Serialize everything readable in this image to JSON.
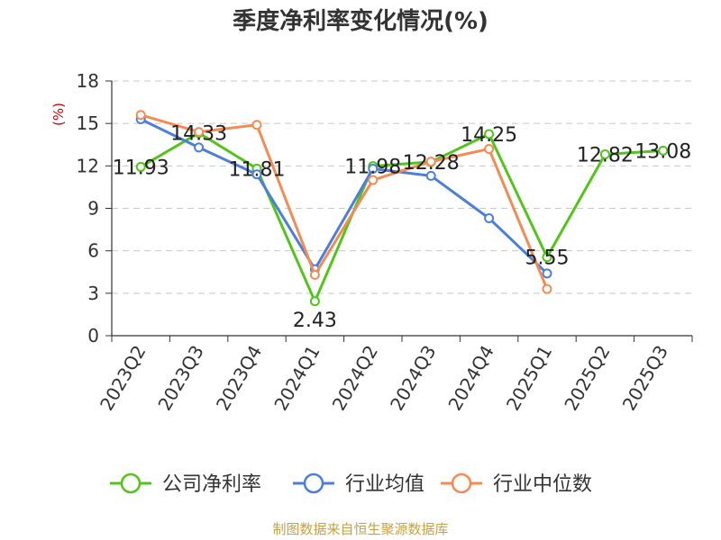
{
  "chart_data": {
    "type": "line",
    "title": "季度净利率变化情况(%)",
    "ylabel": "(%)",
    "ylim": [
      0,
      18
    ],
    "yticks": [
      0,
      3,
      6,
      9,
      12,
      15,
      18
    ],
    "grid": true,
    "legend_position": "bottom",
    "categories": [
      "2023Q2",
      "2023Q3",
      "2023Q4",
      "2024Q1",
      "2024Q2",
      "2024Q3",
      "2024Q4",
      "2025Q1",
      "2025Q2",
      "2025Q3"
    ],
    "series": [
      {
        "name": "公司净利率",
        "color": "#52c41a",
        "values": [
          11.93,
          14.33,
          11.81,
          2.43,
          11.98,
          12.28,
          14.25,
          5.55,
          12.82,
          13.08
        ],
        "labels": [
          "11.93",
          "14.33",
          "11.81",
          "2.43",
          "11.98",
          "12.28",
          "14.25",
          "5.55",
          "12.82",
          "13.08"
        ]
      },
      {
        "name": "行业均值",
        "color": "#4a7fdb",
        "values": [
          15.3,
          13.3,
          11.4,
          4.7,
          11.8,
          11.3,
          8.3,
          4.4,
          null,
          null
        ]
      },
      {
        "name": "行业中位数",
        "color": "#f28b54",
        "values": [
          15.6,
          14.4,
          14.9,
          4.3,
          11.0,
          12.3,
          13.2,
          3.3,
          null,
          null
        ]
      }
    ]
  },
  "source": "制图数据来自恒生聚源数据库"
}
